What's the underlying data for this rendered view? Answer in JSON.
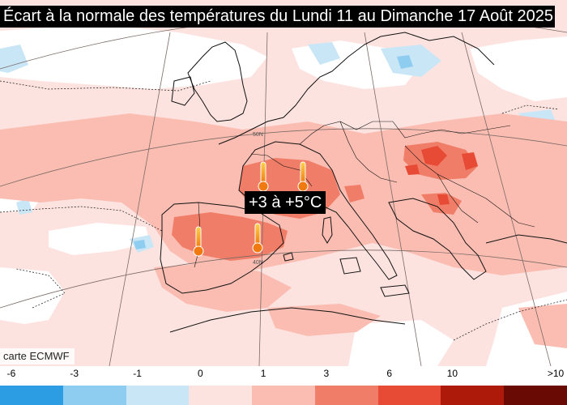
{
  "title": "Écart à la normale des températures du Lundi 11 au Dimanche 17 Août 2025",
  "annotation": "+3 à +5°C",
  "credit": "carte ECMWF",
  "legend": {
    "labels": [
      "-6",
      "-3",
      "-1",
      "0",
      "1",
      "3",
      "6",
      "10",
      ">10"
    ],
    "colors": [
      "#2c9de3",
      "#8fcdf0",
      "#c9e6f7",
      "#fde3e0",
      "#fbbdb2",
      "#f07d68",
      "#e84b35",
      "#ae1a0a",
      "#6a0a05"
    ]
  },
  "map_labels": {
    "lat_50": "50N",
    "lat_40": "40N"
  },
  "icons": [
    "thermometer-icon"
  ]
}
